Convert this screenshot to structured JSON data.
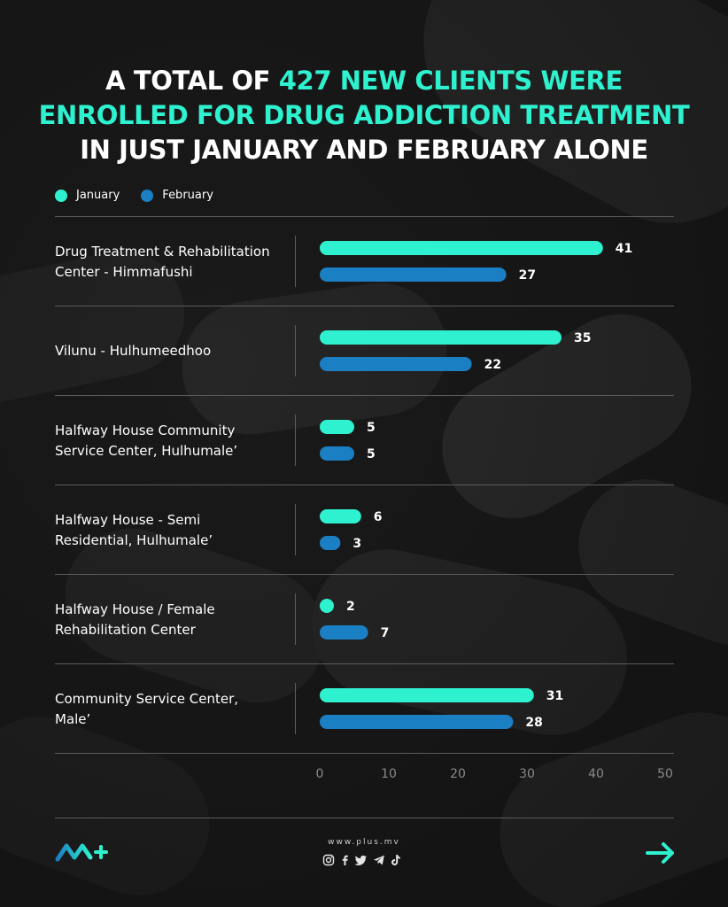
{
  "headline": {
    "line1_white": "A TOTAL OF ",
    "line1_accent": "427 NEW CLIENTS WERE",
    "line2_accent": "ENROLLED FOR DRUG ADDICTION TREATMENT",
    "line3_white": "IN JUST JANUARY AND FEBRUARY ALONE"
  },
  "legend": [
    {
      "label": "January",
      "color": "#2ef2cf"
    },
    {
      "label": "February",
      "color": "#1b7fc4"
    }
  ],
  "rows": [
    {
      "line1": "Drug Treatment & Rehabilitation",
      "line2": "Center - Himmafushi"
    },
    {
      "line1": "Vilunu - Hulhumeedhoo",
      "line2": ""
    },
    {
      "line1": "Halfway House Community",
      "line2": "Service Center, Hulhumale’"
    },
    {
      "line1": "Halfway House - Semi",
      "line2": "Residential, Hulhumale’"
    },
    {
      "line1": "Halfway House / Female",
      "line2": "Rehabilitation Center"
    },
    {
      "line1": "Community Service Center,",
      "line2": "Male’"
    }
  ],
  "chart_data": {
    "type": "bar",
    "orientation": "horizontal",
    "categories": [
      "Drug Treatment & Rehabilitation Center - Himmafushi",
      "Vilunu - Hulhumeedhoo",
      "Halfway House Community Service Center, Hulhumale’",
      "Halfway House - Semi Residential, Hulhumale’",
      "Halfway House / Female Rehabilitation Center",
      "Community Service Center, Male’"
    ],
    "series": [
      {
        "name": "January",
        "values": [
          41,
          35,
          5,
          6,
          2,
          31
        ],
        "color": "#2ef2cf"
      },
      {
        "name": "February",
        "values": [
          27,
          22,
          5,
          3,
          7,
          28
        ],
        "color": "#1b7fc4"
      }
    ],
    "xlim": [
      0,
      50
    ],
    "xticks": [
      "0",
      "10",
      "20",
      "30",
      "40",
      "50"
    ],
    "data_labels": true,
    "grid": false,
    "legend_position": "top-left"
  },
  "footer": {
    "website": "www.plus.mv",
    "logo_icon": "plus-mv-logo",
    "arrow_icon": "arrow-right-icon",
    "social_icons": [
      "instagram-icon",
      "facebook-icon",
      "twitter-icon",
      "telegram-icon",
      "tiktok-icon"
    ]
  }
}
